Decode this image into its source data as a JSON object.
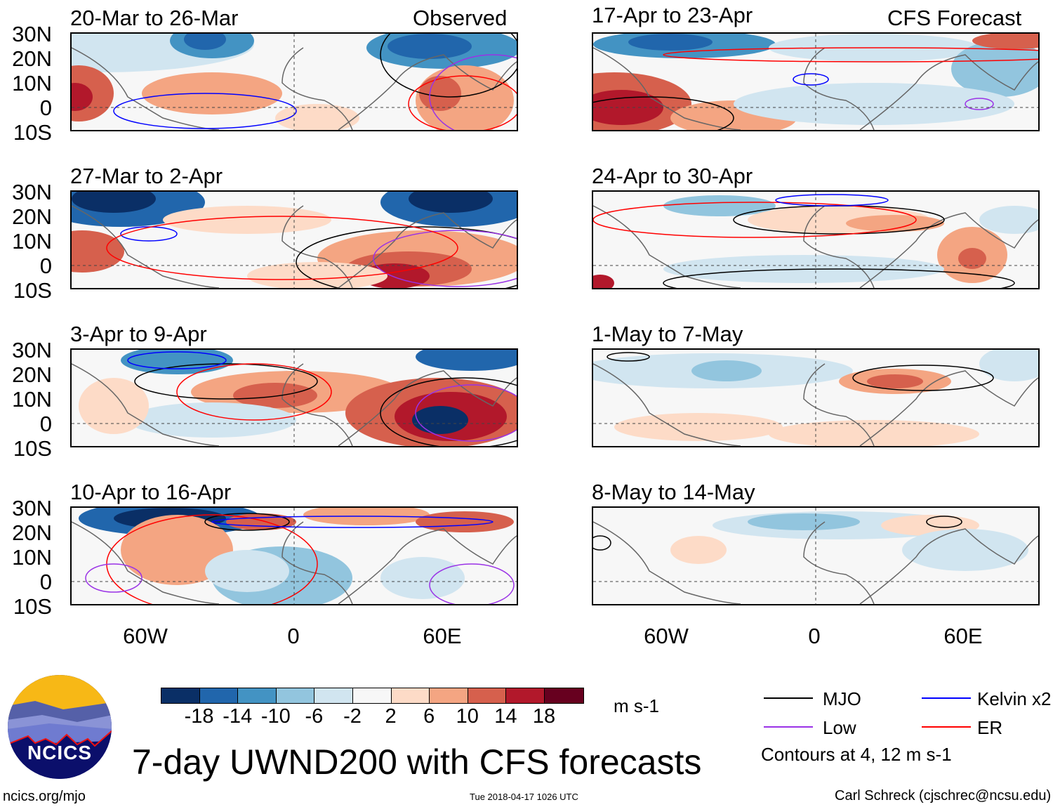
{
  "headers": {
    "observed": "Observed",
    "forecast": "CFS Forecast"
  },
  "panels_left": [
    {
      "title": "20-Mar to 26-Mar"
    },
    {
      "title": "27-Mar to 2-Apr"
    },
    {
      "title": "3-Apr to 9-Apr"
    },
    {
      "title": "10-Apr to 16-Apr"
    }
  ],
  "panels_right": [
    {
      "title": "17-Apr to 23-Apr"
    },
    {
      "title": "24-Apr to 30-Apr"
    },
    {
      "title": "1-May to 7-May"
    },
    {
      "title": "8-May to 14-May"
    }
  ],
  "lat_labels": [
    "30N",
    "20N",
    "10N",
    "0",
    "10S"
  ],
  "lon_labels": [
    "60W",
    "0",
    "60E"
  ],
  "colorbar": {
    "colors": [
      "#0a2f66",
      "#2166ac",
      "#4393c3",
      "#92c5de",
      "#d1e5f0",
      "#f7f7f7",
      "#fddbc7",
      "#f4a582",
      "#d6604d",
      "#b2182b",
      "#67001f"
    ],
    "ticks": [
      "-18",
      "-14",
      "-10",
      "-6",
      "-2",
      "2",
      "6",
      "10",
      "14",
      "18"
    ],
    "units": "m s-1"
  },
  "legend": {
    "items": [
      {
        "label": "MJO",
        "color": "#000000"
      },
      {
        "label": "Kelvin x2",
        "color": "#0000ff"
      },
      {
        "label": "Low",
        "color": "#9a32e6"
      },
      {
        "label": "ER",
        "color": "#ff0000"
      }
    ],
    "note": "Contours at 4, 12 m s-1"
  },
  "title": "7-day UWND200 with CFS forecasts",
  "logo_text": "NCICS",
  "url": "ncics.org/mjo",
  "timestamp": "Tue 2018-04-17 1026 UTC",
  "credit": "Carl Schreck (cjschrec@ncsu.edu)"
}
